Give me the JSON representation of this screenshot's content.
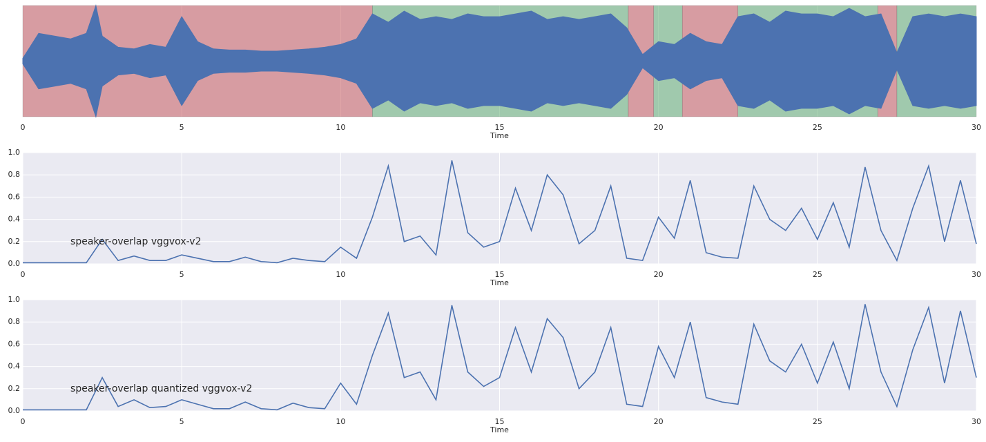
{
  "chart_data": [
    {
      "type": "area",
      "xlabel": "Time",
      "color": "#4c72b0",
      "xlim": [
        0,
        30
      ],
      "ylim": [
        -1,
        1
      ],
      "xticks": [
        0,
        5,
        10,
        15,
        20,
        25,
        30
      ],
      "grid": true,
      "spans": [
        {
          "start": 0,
          "end": 11,
          "color": "#c44e52"
        },
        {
          "start": 11,
          "end": 19.05,
          "color": "#55a868"
        },
        {
          "start": 19.05,
          "end": 19.85,
          "color": "#c44e52"
        },
        {
          "start": 19.85,
          "end": 20.75,
          "color": "#55a868"
        },
        {
          "start": 20.75,
          "end": 22.5,
          "color": "#c44e52"
        },
        {
          "start": 22.5,
          "end": 26.9,
          "color": "#55a868"
        },
        {
          "start": 26.9,
          "end": 27.5,
          "color": "#c44e52"
        },
        {
          "start": 27.5,
          "end": 30,
          "color": "#55a868"
        }
      ],
      "x": [
        0,
        0.5,
        1,
        1.5,
        2,
        2.3,
        2.5,
        3,
        3.5,
        4,
        4.5,
        5,
        5.5,
        6,
        6.5,
        7,
        7.5,
        8,
        8.5,
        9,
        9.5,
        10,
        10.5,
        11,
        11.5,
        12,
        12.5,
        13,
        13.5,
        14,
        14.5,
        15,
        15.5,
        16,
        16.5,
        17,
        17.5,
        18,
        18.5,
        19,
        19.5,
        20,
        20.5,
        21,
        21.5,
        22,
        22.5,
        23,
        23.5,
        24,
        24.5,
        25,
        25.5,
        26,
        26.5,
        27,
        27.5,
        28,
        28.5,
        29,
        29.5,
        30
      ],
      "values": [
        0.05,
        0.5,
        0.45,
        0.4,
        0.5,
        1.0,
        0.45,
        0.25,
        0.22,
        0.3,
        0.25,
        0.8,
        0.35,
        0.22,
        0.2,
        0.2,
        0.18,
        0.18,
        0.2,
        0.22,
        0.25,
        0.3,
        0.4,
        0.85,
        0.7,
        0.9,
        0.75,
        0.8,
        0.75,
        0.85,
        0.8,
        0.8,
        0.85,
        0.9,
        0.75,
        0.8,
        0.75,
        0.8,
        0.85,
        0.6,
        0.12,
        0.35,
        0.3,
        0.5,
        0.35,
        0.3,
        0.8,
        0.85,
        0.7,
        0.9,
        0.85,
        0.85,
        0.8,
        0.95,
        0.8,
        0.85,
        0.15,
        0.8,
        0.85,
        0.8,
        0.85,
        0.8
      ]
    },
    {
      "type": "line",
      "xlabel": "Time",
      "color": "#4c72b0",
      "xlim": [
        0,
        30
      ],
      "ylim": [
        0,
        1
      ],
      "xticks": [
        0,
        5,
        10,
        15,
        20,
        25,
        30
      ],
      "yticks": [
        {
          "value": 0,
          "label": "0.0"
        },
        0.2,
        0.4,
        0.6,
        0.8,
        {
          "value": 1,
          "label": "1.0"
        }
      ],
      "grid": true,
      "annotation": {
        "text": "speaker-overlap vggvox-v2",
        "x": 1.5,
        "y": 0.2
      },
      "x": [
        0,
        0.5,
        1,
        1.5,
        2,
        2.5,
        3,
        3.5,
        4,
        4.5,
        5,
        5.5,
        6,
        6.5,
        7,
        7.5,
        8,
        8.5,
        9,
        9.5,
        10,
        10.5,
        11,
        11.5,
        12,
        12.5,
        13,
        13.5,
        14,
        14.5,
        15,
        15.5,
        16,
        16.5,
        17,
        17.5,
        18,
        18.5,
        19,
        19.5,
        20,
        20.5,
        21,
        21.5,
        22,
        22.5,
        23,
        23.5,
        24,
        24.5,
        25,
        25.5,
        26,
        26.5,
        27,
        27.5,
        28,
        28.5,
        29,
        29.5,
        30
      ],
      "values": [
        0.01,
        0.01,
        0.01,
        0.01,
        0.01,
        0.22,
        0.03,
        0.07,
        0.03,
        0.03,
        0.08,
        0.05,
        0.02,
        0.02,
        0.06,
        0.02,
        0.01,
        0.05,
        0.03,
        0.02,
        0.15,
        0.05,
        0.42,
        0.88,
        0.2,
        0.25,
        0.08,
        0.93,
        0.28,
        0.15,
        0.2,
        0.68,
        0.3,
        0.8,
        0.62,
        0.18,
        0.3,
        0.7,
        0.05,
        0.03,
        0.42,
        0.23,
        0.75,
        0.1,
        0.06,
        0.05,
        0.7,
        0.4,
        0.3,
        0.5,
        0.22,
        0.55,
        0.15,
        0.87,
        0.3,
        0.03,
        0.5,
        0.88,
        0.2,
        0.75,
        0.18
      ]
    },
    {
      "type": "line",
      "xlabel": "Time",
      "color": "#4c72b0",
      "xlim": [
        0,
        30
      ],
      "ylim": [
        0,
        1
      ],
      "xticks": [
        0,
        5,
        10,
        15,
        20,
        25,
        30
      ],
      "yticks": [
        {
          "value": 0,
          "label": "0.0"
        },
        0.2,
        0.4,
        0.6,
        0.8,
        {
          "value": 1,
          "label": "1.0"
        }
      ],
      "grid": true,
      "annotation": {
        "text": "speaker-overlap quantized vggvox-v2",
        "x": 1.5,
        "y": 0.2
      },
      "x": [
        0,
        0.5,
        1,
        1.5,
        2,
        2.5,
        3,
        3.5,
        4,
        4.5,
        5,
        5.5,
        6,
        6.5,
        7,
        7.5,
        8,
        8.5,
        9,
        9.5,
        10,
        10.5,
        11,
        11.5,
        12,
        12.5,
        13,
        13.5,
        14,
        14.5,
        15,
        15.5,
        16,
        16.5,
        17,
        17.5,
        18,
        18.5,
        19,
        19.5,
        20,
        20.5,
        21,
        21.5,
        22,
        22.5,
        23,
        23.5,
        24,
        24.5,
        25,
        25.5,
        26,
        26.5,
        27,
        27.5,
        28,
        28.5,
        29,
        29.5,
        30
      ],
      "values": [
        0.01,
        0.01,
        0.01,
        0.01,
        0.01,
        0.3,
        0.04,
        0.1,
        0.03,
        0.04,
        0.1,
        0.06,
        0.02,
        0.02,
        0.08,
        0.02,
        0.01,
        0.07,
        0.03,
        0.02,
        0.25,
        0.06,
        0.5,
        0.88,
        0.3,
        0.35,
        0.1,
        0.95,
        0.35,
        0.22,
        0.3,
        0.75,
        0.35,
        0.83,
        0.66,
        0.2,
        0.35,
        0.75,
        0.06,
        0.04,
        0.58,
        0.3,
        0.8,
        0.12,
        0.08,
        0.06,
        0.78,
        0.45,
        0.35,
        0.6,
        0.25,
        0.62,
        0.2,
        0.96,
        0.35,
        0.04,
        0.55,
        0.93,
        0.25,
        0.9,
        0.3
      ]
    }
  ]
}
